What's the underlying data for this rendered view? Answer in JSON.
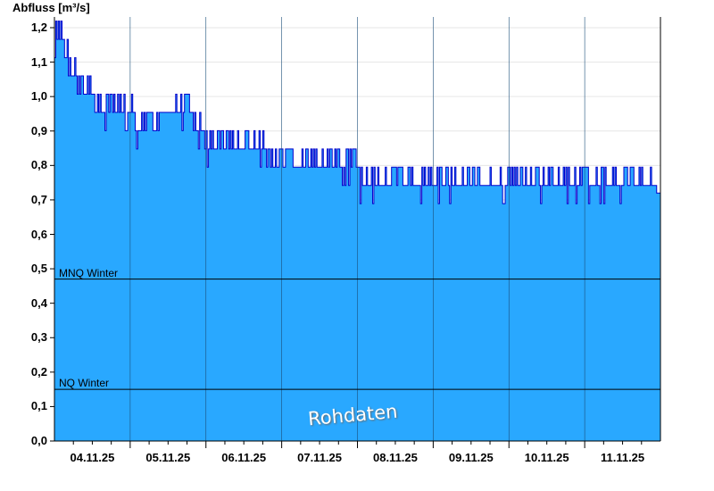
{
  "chart_data": {
    "type": "area",
    "ylabel": "Abfluss [m³/s]",
    "ylim": [
      0,
      1.25
    ],
    "yticks": [
      "0,0",
      "0,1",
      "0,2",
      "0,3",
      "0,4",
      "0,5",
      "0,6",
      "0,7",
      "0,8",
      "0,9",
      "1,0",
      "1,1",
      "1,2"
    ],
    "x_range_days": [
      "03.11.25",
      "11.11.25"
    ],
    "xtick_labels": [
      "04.11.25",
      "05.11.25",
      "06.11.25",
      "07.11.25",
      "08.11.25",
      "09.11.25",
      "10.11.25",
      "11.11.25"
    ],
    "grid": true,
    "fill_color": "#29a8ff",
    "line_color": "#0000cc",
    "series": [
      {
        "x_days": [
          0,
          0.05,
          0.1,
          0.15,
          0.2,
          0.3,
          0.45,
          0.6,
          0.8,
          1.0,
          1.2,
          1.4,
          1.6,
          1.8,
          2.0,
          2.2,
          2.4,
          2.6,
          2.8,
          3.0,
          3.2,
          3.4,
          3.6,
          3.8,
          4.0,
          4.2,
          4.4,
          4.6,
          4.8,
          5.0,
          5.2,
          5.4,
          5.6,
          5.8,
          6.0,
          6.2,
          6.4,
          6.6,
          6.8,
          7.0,
          7.2,
          7.4,
          7.6,
          7.8,
          7.95
        ],
        "values": [
          1.12,
          1.18,
          1.16,
          1.1,
          1.06,
          1.03,
          1.0,
          0.96,
          0.93,
          0.93,
          0.9,
          0.93,
          0.93,
          0.93,
          0.87,
          0.86,
          0.83,
          0.83,
          0.83,
          0.79,
          0.79,
          0.79,
          0.79,
          0.78,
          0.77,
          0.76,
          0.76,
          0.75,
          0.74,
          0.73,
          0.72,
          0.72,
          0.72,
          0.72,
          0.72,
          0.75,
          0.75,
          0.72,
          0.72,
          0.72,
          0.75,
          0.72,
          0.72,
          0.72,
          0.72
        ]
      }
    ],
    "reference_lines": [
      {
        "name": "MNQ Winter",
        "value": 0.47
      },
      {
        "name": "NQ Winter",
        "value": 0.15
      }
    ],
    "annotation": "Rohdaten"
  }
}
